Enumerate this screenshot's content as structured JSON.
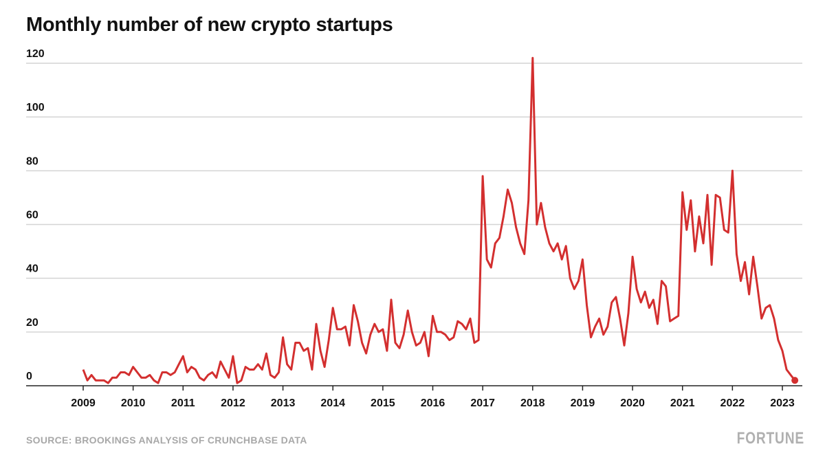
{
  "chart_data": {
    "type": "line",
    "title": "Monthly number of new crypto startups",
    "xlabel": "",
    "ylabel": "",
    "ylim": [
      0,
      120
    ],
    "yticks": [
      0,
      20,
      40,
      60,
      80,
      100,
      120
    ],
    "xticks": [
      "2009",
      "2010",
      "2011",
      "2012",
      "2013",
      "2014",
      "2015",
      "2016",
      "2017",
      "2018",
      "2019",
      "2020",
      "2021",
      "2022",
      "2023"
    ],
    "grid": true,
    "start": "2009-01",
    "frequency": "monthly",
    "series": [
      {
        "name": "New crypto startups",
        "color": "#d32f2f",
        "values": [
          6,
          2,
          4,
          2,
          2,
          2,
          1,
          3,
          3,
          5,
          5,
          4,
          7,
          5,
          3,
          3,
          4,
          2,
          1,
          5,
          5,
          4,
          5,
          8,
          11,
          5,
          7,
          6,
          3,
          2,
          4,
          5,
          3,
          9,
          6,
          3,
          11,
          1,
          2,
          7,
          6,
          6,
          8,
          6,
          12,
          4,
          3,
          5,
          18,
          8,
          6,
          16,
          16,
          13,
          14,
          6,
          23,
          13,
          7,
          17,
          29,
          21,
          21,
          22,
          15,
          30,
          24,
          16,
          12,
          19,
          23,
          20,
          21,
          13,
          32,
          16,
          14,
          19,
          28,
          20,
          15,
          16,
          20,
          11,
          26,
          20,
          20,
          19,
          17,
          18,
          24,
          23,
          21,
          25,
          16,
          17,
          78,
          47,
          44,
          53,
          55,
          63,
          73,
          68,
          59,
          53,
          49,
          69,
          122,
          60,
          68,
          59,
          53,
          50,
          53,
          47,
          52,
          40,
          36,
          39,
          47,
          30,
          18,
          22,
          25,
          19,
          22,
          31,
          33,
          25,
          15,
          27,
          48,
          36,
          31,
          35,
          29,
          32,
          23,
          39,
          37,
          24,
          25,
          26,
          72,
          58,
          69,
          50,
          63,
          53,
          71,
          45,
          71,
          70,
          58,
          57,
          80,
          49,
          39,
          46,
          34,
          48,
          37,
          25,
          29,
          30,
          25,
          17,
          13,
          6,
          4,
          2
        ]
      }
    ]
  },
  "source": "SOURCE: BROOKINGS ANALYSIS OF CRUNCHBASE DATA",
  "logo": "FORTUNE"
}
